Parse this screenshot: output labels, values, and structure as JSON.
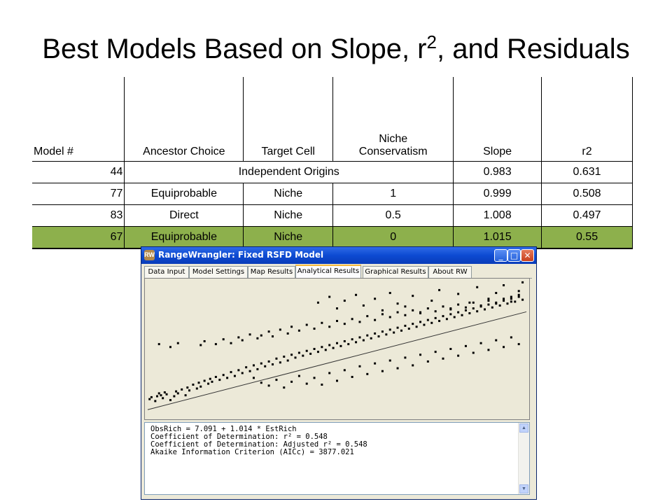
{
  "slide": {
    "title_prefix": "Best Models Based on Slope, r",
    "title_sup": "2",
    "title_suffix": ", and Residuals"
  },
  "table": {
    "headers": [
      "Model #",
      "Ancestor Choice",
      "Target Cell",
      "Niche Conservatism",
      "Slope",
      "r2"
    ],
    "rows": [
      {
        "model": "44",
        "ancestor": "Independent Origins",
        "target": "",
        "niche": "",
        "slope": "0.983",
        "r2": "0.631"
      },
      {
        "model": "77",
        "ancestor": "Equiprobable",
        "target": "Niche",
        "niche": "1",
        "slope": "0.999",
        "r2": "0.508"
      },
      {
        "model": "83",
        "ancestor": "Direct",
        "target": "Niche",
        "niche": "0.5",
        "slope": "1.008",
        "r2": "0.497"
      },
      {
        "model": "67",
        "ancestor": "Equiprobable",
        "target": "Niche",
        "niche": "0",
        "slope": "1.015",
        "r2": "0.55"
      }
    ],
    "highlight_color": "#8db04c"
  },
  "window": {
    "title": "RangeWrangler: Fixed RSFD Model",
    "controls": {
      "minimize": "_",
      "maximize": "□",
      "close": "✕"
    },
    "tabs": [
      "Data Input",
      "Model Settings",
      "Map Results",
      "Analytical Results",
      "Graphical Results",
      "About RW"
    ],
    "active_tab": "Analytical Results",
    "output_lines": [
      "ObsRich = 7.091 + 1.014 * EstRich",
      "Coefficient of Determination: r² = 0.548",
      "Coefficient of Determination: Adjusted r² = 0.548",
      "Akaike Information Criterion (AICc) = 3877.021"
    ]
  },
  "chart_data": {
    "type": "scatter",
    "title": "",
    "xlabel": "",
    "ylabel": "",
    "grid": false,
    "fit_line": {
      "intercept": 7.091,
      "slope": 1.014
    },
    "x_range": [
      0,
      100
    ],
    "y_range": [
      0,
      140
    ],
    "points": [
      [
        0.5,
        18
      ],
      [
        1,
        20
      ],
      [
        2,
        16
      ],
      [
        2.5,
        21
      ],
      [
        3,
        24
      ],
      [
        3.5,
        22
      ],
      [
        4,
        19
      ],
      [
        4.5,
        25
      ],
      [
        5,
        23
      ],
      [
        6,
        17
      ],
      [
        7,
        21
      ],
      [
        7.5,
        26
      ],
      [
        8,
        24
      ],
      [
        9,
        28
      ],
      [
        10,
        22
      ],
      [
        10.5,
        30
      ],
      [
        11,
        27
      ],
      [
        12,
        33
      ],
      [
        13,
        29
      ],
      [
        13.5,
        35
      ],
      [
        14,
        31
      ],
      [
        15,
        37
      ],
      [
        16,
        34
      ],
      [
        16.5,
        39
      ],
      [
        17,
        36
      ],
      [
        18,
        41
      ],
      [
        19,
        38
      ],
      [
        20,
        43
      ],
      [
        21,
        40
      ],
      [
        22,
        46
      ],
      [
        23,
        42
      ],
      [
        24,
        48
      ],
      [
        25,
        45
      ],
      [
        26,
        51
      ],
      [
        27,
        47
      ],
      [
        28,
        53
      ],
      [
        29,
        49
      ],
      [
        30,
        55
      ],
      [
        31,
        52
      ],
      [
        32,
        57
      ],
      [
        33,
        54
      ],
      [
        34,
        60
      ],
      [
        35,
        56
      ],
      [
        36,
        62
      ],
      [
        37,
        58
      ],
      [
        38,
        64
      ],
      [
        39,
        61
      ],
      [
        40,
        66
      ],
      [
        41,
        63
      ],
      [
        42,
        68
      ],
      [
        43,
        65
      ],
      [
        44,
        70
      ],
      [
        45,
        67
      ],
      [
        46,
        72
      ],
      [
        47,
        69
      ],
      [
        48,
        74
      ],
      [
        49,
        71
      ],
      [
        50,
        76
      ],
      [
        51,
        73
      ],
      [
        52,
        78
      ],
      [
        53,
        75
      ],
      [
        54,
        80
      ],
      [
        55,
        77
      ],
      [
        56,
        82
      ],
      [
        57,
        79
      ],
      [
        58,
        84
      ],
      [
        59,
        81
      ],
      [
        60,
        86
      ],
      [
        61,
        83
      ],
      [
        62,
        88
      ],
      [
        63,
        85
      ],
      [
        64,
        90
      ],
      [
        65,
        87
      ],
      [
        66,
        92
      ],
      [
        67,
        89
      ],
      [
        68,
        94
      ],
      [
        69,
        91
      ],
      [
        70,
        96
      ],
      [
        71,
        93
      ],
      [
        72,
        98
      ],
      [
        73,
        95
      ],
      [
        74,
        100
      ],
      [
        75,
        97
      ],
      [
        76,
        102
      ],
      [
        77,
        99
      ],
      [
        78,
        104
      ],
      [
        79,
        101
      ],
      [
        80,
        106
      ],
      [
        81,
        103
      ],
      [
        82,
        108
      ],
      [
        83,
        105
      ],
      [
        84,
        110
      ],
      [
        85,
        107
      ],
      [
        86,
        112
      ],
      [
        87,
        109
      ],
      [
        88,
        114
      ],
      [
        89,
        111
      ],
      [
        90,
        116
      ],
      [
        91,
        113
      ],
      [
        92,
        118
      ],
      [
        93,
        115
      ],
      [
        94,
        120
      ],
      [
        95,
        117
      ],
      [
        96,
        122
      ],
      [
        97,
        119
      ],
      [
        98,
        124
      ],
      [
        99,
        121
      ],
      [
        3,
        75
      ],
      [
        6,
        72
      ],
      [
        8,
        76
      ],
      [
        14,
        74
      ],
      [
        15,
        78
      ],
      [
        18,
        75
      ],
      [
        20,
        80
      ],
      [
        22,
        76
      ],
      [
        24,
        82
      ],
      [
        25,
        79
      ],
      [
        27,
        85
      ],
      [
        29,
        81
      ],
      [
        30,
        84
      ],
      [
        32,
        88
      ],
      [
        33,
        83
      ],
      [
        35,
        90
      ],
      [
        37,
        86
      ],
      [
        38,
        93
      ],
      [
        40,
        89
      ],
      [
        42,
        95
      ],
      [
        44,
        91
      ],
      [
        46,
        97
      ],
      [
        48,
        93
      ],
      [
        50,
        99
      ],
      [
        52,
        96
      ],
      [
        54,
        101
      ],
      [
        56,
        98
      ],
      [
        58,
        104
      ],
      [
        60,
        100
      ],
      [
        62,
        106
      ],
      [
        64,
        103
      ],
      [
        66,
        108
      ],
      [
        68,
        105
      ],
      [
        70,
        110
      ],
      [
        72,
        107
      ],
      [
        74,
        112
      ],
      [
        76,
        109
      ],
      [
        78,
        114
      ],
      [
        80,
        111
      ],
      [
        82,
        116
      ],
      [
        84,
        113
      ],
      [
        86,
        118
      ],
      [
        88,
        115
      ],
      [
        90,
        120
      ],
      [
        92,
        117
      ],
      [
        94,
        122
      ],
      [
        96,
        119
      ],
      [
        98,
        126
      ],
      [
        28,
        40
      ],
      [
        30,
        35
      ],
      [
        32,
        32
      ],
      [
        34,
        38
      ],
      [
        36,
        30
      ],
      [
        38,
        36
      ],
      [
        40,
        42
      ],
      [
        42,
        34
      ],
      [
        44,
        40
      ],
      [
        46,
        33
      ],
      [
        48,
        45
      ],
      [
        50,
        37
      ],
      [
        52,
        48
      ],
      [
        54,
        41
      ],
      [
        56,
        52
      ],
      [
        58,
        44
      ],
      [
        60,
        55
      ],
      [
        62,
        47
      ],
      [
        64,
        58
      ],
      [
        66,
        50
      ],
      [
        68,
        61
      ],
      [
        70,
        53
      ],
      [
        72,
        64
      ],
      [
        74,
        57
      ],
      [
        76,
        67
      ],
      [
        78,
        60
      ],
      [
        80,
        70
      ],
      [
        82,
        63
      ],
      [
        84,
        73
      ],
      [
        86,
        66
      ],
      [
        88,
        76
      ],
      [
        90,
        69
      ],
      [
        92,
        79
      ],
      [
        94,
        72
      ],
      [
        96,
        82
      ],
      [
        98,
        75
      ],
      [
        45,
        118
      ],
      [
        48,
        124
      ],
      [
        50,
        112
      ],
      [
        52,
        120
      ],
      [
        55,
        126
      ],
      [
        57,
        115
      ],
      [
        60,
        122
      ],
      [
        62,
        110
      ],
      [
        64,
        128
      ],
      [
        66,
        117
      ],
      [
        68,
        114
      ],
      [
        70,
        125
      ],
      [
        72,
        108
      ],
      [
        75,
        120
      ],
      [
        77,
        131
      ],
      [
        80,
        112
      ],
      [
        82,
        127
      ],
      [
        85,
        118
      ],
      [
        87,
        134
      ],
      [
        90,
        122
      ],
      [
        92,
        128
      ],
      [
        94,
        136
      ],
      [
        96,
        124
      ],
      [
        98,
        130
      ],
      [
        99,
        139
      ]
    ]
  }
}
